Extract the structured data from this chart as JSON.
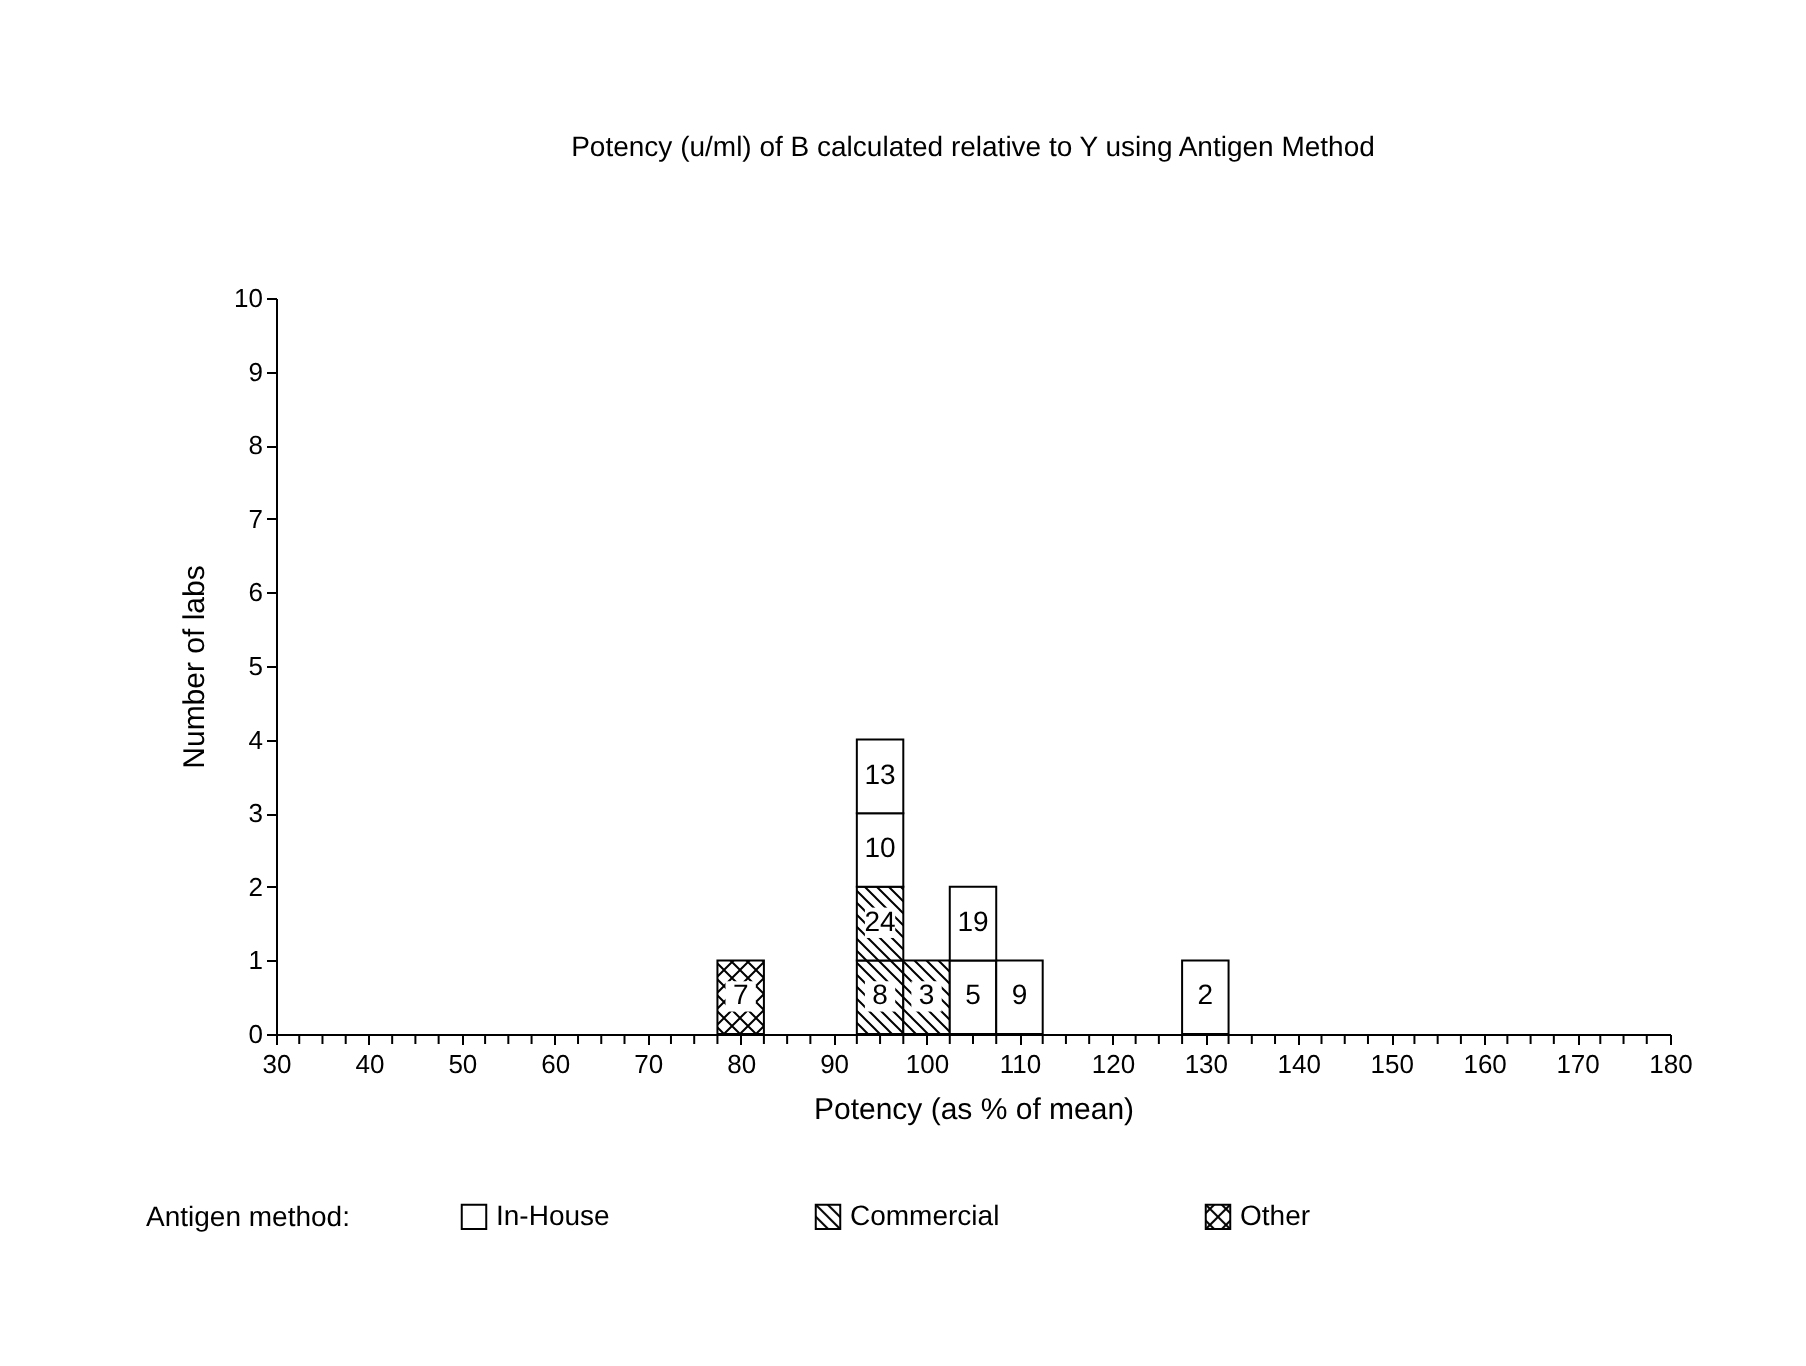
{
  "chart_data": {
    "type": "bar",
    "title": "Potency (u/ml) of B calculated relative to Y using Antigen Method",
    "xlabel": "Potency (as % of mean)",
    "ylabel": "Number of labs",
    "legend_title": "Antigen method:",
    "legend": "bottom",
    "stacked": true,
    "x": [
      80,
      85,
      90,
      95,
      100,
      105,
      110,
      115,
      120,
      125,
      130
    ],
    "series": [
      {
        "name": "Other",
        "color": "#000000",
        "values": [
          1,
          0,
          0,
          0,
          0,
          0,
          0,
          0,
          0,
          0,
          0
        ]
      },
      {
        "name": "Commercial",
        "color": "#000000",
        "values": [
          0,
          0,
          0,
          1,
          1,
          0,
          0,
          0,
          0,
          0,
          0
        ]
      },
      {
        "color": "#000000",
        "values": [
          0,
          0,
          0,
          1,
          0,
          0,
          0,
          0,
          0,
          0,
          0
        ]
      },
      {
        "name": "In-House",
        "color": "#ffffff",
        "values": [
          0,
          0,
          0,
          1,
          0,
          1,
          1,
          0,
          0,
          0,
          1
        ]
      },
      {
        "color": "#ffffff",
        "values": [
          0,
          0,
          0,
          1,
          0,
          1,
          0,
          0,
          0,
          0,
          0
        ]
      }
    ],
    "annotations": [
      {
        "text": "7",
        "x": 80,
        "y": 1
      },
      {
        "text": "8",
        "x": 95,
        "y": 1
      },
      {
        "text": "24",
        "x": 95,
        "y": 2
      },
      {
        "text": "10",
        "x": 95,
        "y": 3
      },
      {
        "text": "13",
        "x": 95,
        "y": 4
      },
      {
        "text": "3",
        "x": 100,
        "y": 1
      },
      {
        "text": "5",
        "x": 105,
        "y": 1
      },
      {
        "text": "19",
        "x": 105,
        "y": 2
      },
      {
        "text": "9",
        "x": 110,
        "y": 1
      },
      {
        "text": "2",
        "x": 130,
        "y": 1
      }
    ],
    "xlim": [
      30,
      180
    ],
    "xticks": [
      30,
      {
        "value": 32.5,
        "label": null
      },
      {
        "value": 35,
        "label": null
      },
      {
        "value": 37.5,
        "label": null
      },
      40,
      {
        "value": 42.5,
        "label": null
      },
      {
        "value": 45,
        "label": null
      },
      {
        "value": 47.5,
        "label": null
      },
      50,
      {
        "value": 52.5,
        "label": null
      },
      {
        "value": 55,
        "label": null
      },
      {
        "value": 57.5,
        "label": null
      },
      60,
      {
        "value": 62.5,
        "label": null
      },
      {
        "value": 65,
        "label": null
      },
      {
        "value": 67.5,
        "label": null
      },
      70,
      {
        "value": 72.5,
        "label": null
      },
      {
        "value": 75,
        "label": null
      },
      {
        "value": 77.5,
        "label": null
      },
      80,
      {
        "value": 82.5,
        "label": null
      },
      {
        "value": 85,
        "label": null
      },
      {
        "value": 87.5,
        "label": null
      },
      90,
      {
        "value": 92.5,
        "label": null
      },
      {
        "value": 95,
        "label": null
      },
      {
        "value": 97.5,
        "label": null
      },
      100,
      {
        "value": 102.5,
        "label": null
      },
      {
        "value": 105,
        "label": null
      },
      {
        "value": 107.5,
        "label": null
      },
      110,
      {
        "value": 112.5,
        "label": null
      },
      {
        "value": 115,
        "label": null
      },
      {
        "value": 117.5,
        "label": null
      },
      120,
      {
        "value": 122.5,
        "label": null
      },
      {
        "value": 125,
        "label": null
      },
      {
        "value": 127.5,
        "label": null
      },
      130,
      {
        "value": 132.5,
        "label": null
      },
      {
        "value": 135,
        "label": null
      },
      {
        "value": 137.5,
        "label": null
      },
      140,
      {
        "value": 142.5,
        "label": null
      },
      {
        "value": 145,
        "label": null
      },
      {
        "value": 147.5,
        "label": null
      },
      150,
      {
        "value": 152.5,
        "label": null
      },
      {
        "value": 155,
        "label": null
      },
      {
        "value": 157.5,
        "label": null
      },
      160,
      {
        "value": 162.5,
        "label": null
      },
      {
        "value": 165,
        "label": null
      },
      {
        "value": 167.5,
        "label": null
      },
      170,
      {
        "value": 172.5,
        "label": null
      },
      {
        "value": 175,
        "label": null
      },
      {
        "value": 177.5,
        "label": null
      },
      180
    ],
    "ylim": [
      0,
      10
    ],
    "yticks": [
      0,
      1,
      2,
      3,
      4,
      5,
      6,
      7,
      8,
      9,
      10
    ]
  }
}
